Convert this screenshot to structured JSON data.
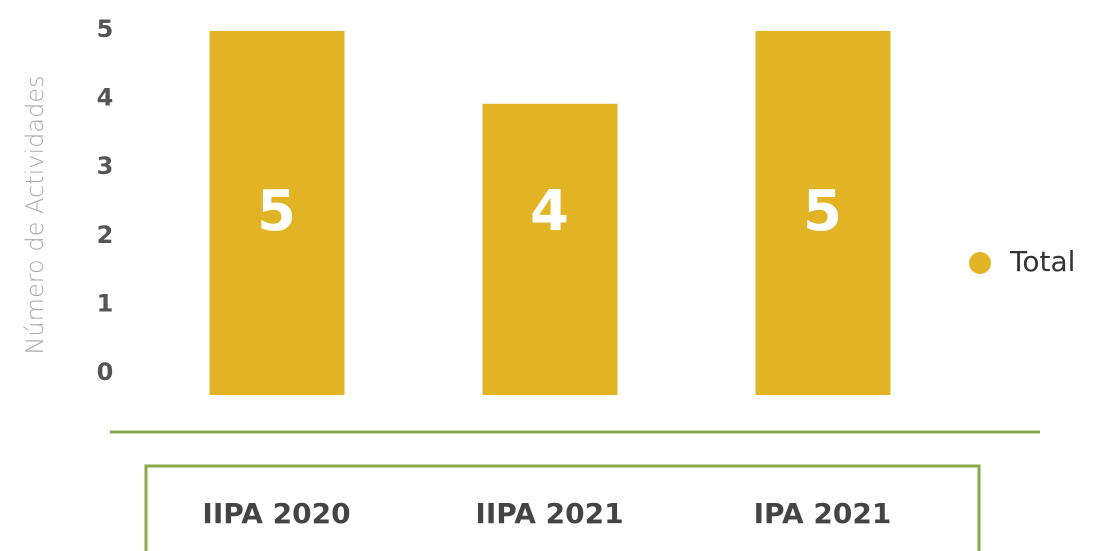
{
  "chart_data": {
    "type": "bar",
    "y_label": "Número de Actividades",
    "categories": [
      "IIPA 2020",
      "IIPA 2021",
      "IPA 2021"
    ],
    "series": [
      {
        "name": "Total",
        "color": "#e2b325",
        "values": [
          5,
          4,
          5
        ]
      }
    ],
    "ylim": [
      0,
      5
    ],
    "yticks": [
      0,
      1,
      2,
      3,
      4,
      5
    ],
    "legend": "right"
  }
}
